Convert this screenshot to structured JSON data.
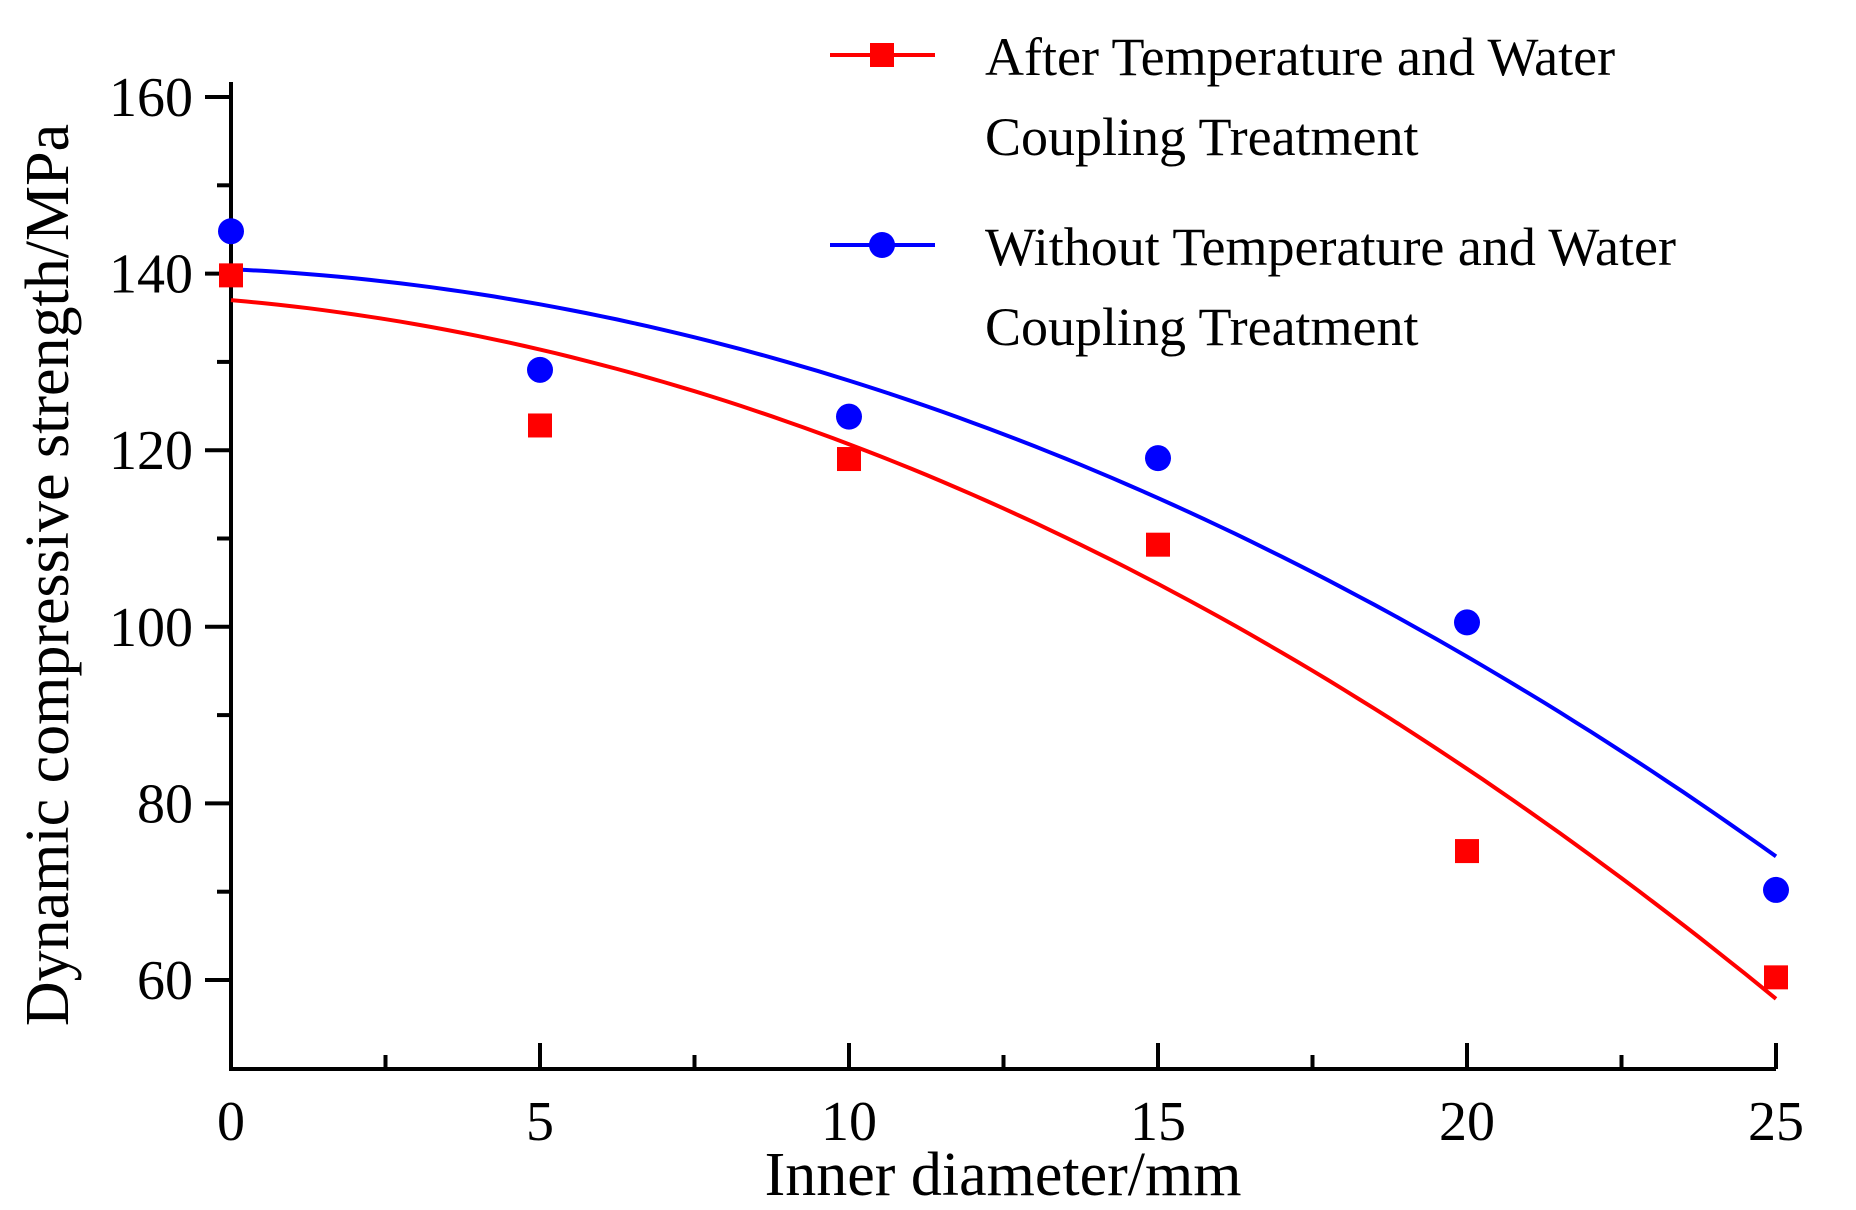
{
  "chart_data": {
    "type": "scatter",
    "title": "",
    "xlabel": "Inner diameter/mm",
    "ylabel": "Dynamic compressive strength/MPa",
    "xlim": [
      0,
      25
    ],
    "ylim": [
      50,
      160
    ],
    "xticks": [
      0,
      5,
      10,
      15,
      20,
      25
    ],
    "xtick_labels": [
      "0",
      "5",
      "10",
      "15",
      "20",
      "25"
    ],
    "yticks": [
      60,
      80,
      100,
      120,
      140,
      160
    ],
    "ytick_labels": [
      "60",
      "80",
      "100",
      "120",
      "140",
      "160"
    ],
    "legend_position": "top-right",
    "series": [
      {
        "name": "After Temperature and Water Coupling Treatment",
        "legend_lines": [
          "After Temperature and Water",
          "Coupling Treatment"
        ],
        "marker": "square",
        "color": "#ff0000",
        "x": [
          0,
          5,
          10,
          15,
          20,
          25
        ],
        "y": [
          139.8,
          122.8,
          119.0,
          109.3,
          74.6,
          60.3
        ],
        "fit_curve": {
          "type": "quadratic",
          "coefficients": [
            137.0,
            -0.61,
            -0.1022
          ]
        }
      },
      {
        "name": "Without Temperature and Water Coupling Treatment",
        "legend_lines": [
          "Without Temperature and Water",
          "Coupling Treatment"
        ],
        "marker": "circle",
        "color": "#0000ff",
        "x": [
          0,
          5,
          10,
          15,
          20,
          25
        ],
        "y": [
          144.8,
          129.1,
          123.8,
          119.1,
          100.5,
          70.2
        ],
        "fit_curve": {
          "type": "quadratic",
          "coefficients": [
            140.5,
            -0.33,
            -0.0932
          ]
        }
      }
    ]
  }
}
